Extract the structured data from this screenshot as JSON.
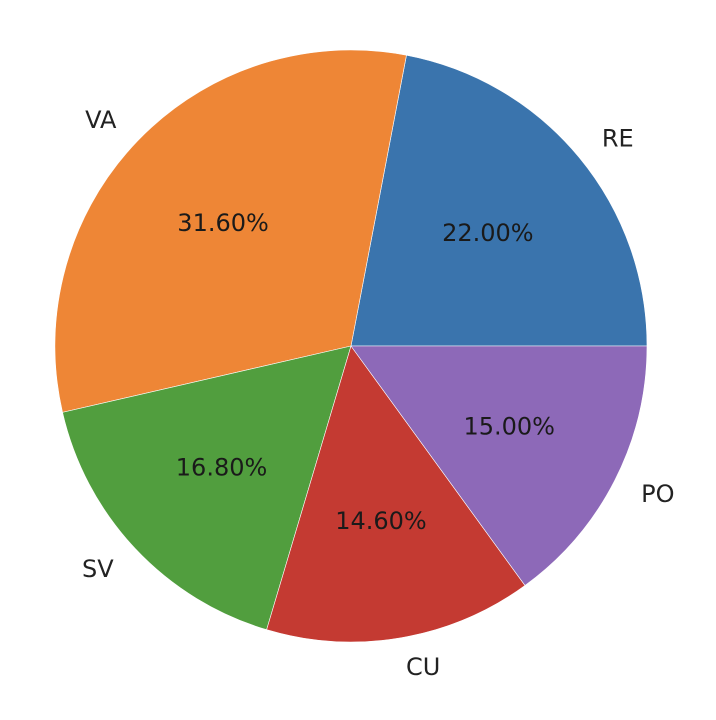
{
  "chart_data": {
    "type": "pie",
    "start_angle_deg": 0,
    "direction": "counterclockwise",
    "slices": [
      {
        "label": "RE",
        "value": 22.0,
        "display": "22.00%",
        "color": "#3a74ad"
      },
      {
        "label": "VA",
        "value": 31.6,
        "display": "31.60%",
        "color": "#ee8636"
      },
      {
        "label": "SV",
        "value": 16.8,
        "display": "16.80%",
        "color": "#519e3e"
      },
      {
        "label": "CU",
        "value": 14.6,
        "display": "14.60%",
        "color": "#c43a32"
      },
      {
        "label": "PO",
        "value": 15.0,
        "display": "15.00%",
        "color": "#8d69b8"
      }
    ]
  }
}
